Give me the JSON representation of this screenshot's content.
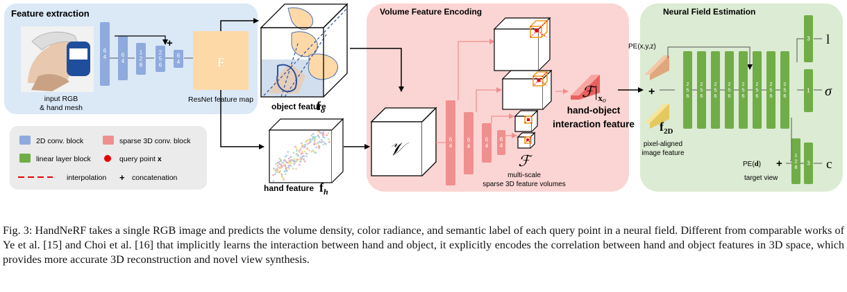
{
  "panels": {
    "feature_extraction": "Feature extraction",
    "volume_feature_encoding": "Volume Feature Encoding",
    "neural_field_estimation": "Neural Field Estimation"
  },
  "labels": {
    "input_rgb_line1": "input RGB",
    "input_rgb_line2": "& hand mesh",
    "resnet_feature_map": "ResNet feature map",
    "feature_map_symbol": "F",
    "object_feature": "object feature",
    "object_feature_symbol": "f",
    "object_feature_sub": "o",
    "hand_feature": "hand feature",
    "hand_feature_symbol": "f",
    "hand_feature_sub": "h",
    "volume_symbol": "𝒱",
    "multiscale_symbol": "ℱ",
    "multiscale_line1": "multi-scale",
    "multiscale_line2": "sparse 3D feature volumes",
    "interaction_symbol": "ℱ|",
    "interaction_sub": "x",
    "interaction_subsub": "o",
    "interaction_line1": "hand-object",
    "interaction_line2": "interaction feature",
    "pe_xyz": "PE(x,y,z)",
    "f2d_symbol": "f",
    "f2d_sub": "2D",
    "pixel_aligned_line1": "pixel-aligned",
    "pixel_aligned_line2": "image feature",
    "pe_d_prefix": "PE(",
    "pe_d_var": "d",
    "pe_d_suffix": ")",
    "target_view": "target view",
    "out_l": "l",
    "out_sigma": "σ",
    "out_c": "c",
    "plus": "+"
  },
  "legend": {
    "conv2d": "2D conv. block",
    "sparse3d": "sparse 3D conv. block",
    "linear": "linear layer block",
    "query_prefix": "query point ",
    "query_var": "x",
    "interpolation": "interpolation",
    "concat": "concatenation"
  },
  "blocks": {
    "conv2d": [
      "6\n4",
      "6\n4",
      "1\n2\n8",
      "2\n5\n6",
      "6\n4"
    ],
    "sparse3d": [
      "6\n4",
      "6\n4",
      "6\n4",
      "6\n4"
    ],
    "linear_main": [
      "2\n5\n6",
      "2\n5\n6",
      "2\n5\n6",
      "2\n5\n6",
      "2\n5\n6",
      "2\n5\n6",
      "2\n5\n6",
      "2\n5\n6"
    ],
    "linear_l": "3",
    "linear_sigma": "1",
    "linear_c1": "1\n2\n8",
    "linear_c2": "3"
  },
  "colors": {
    "blue_panel": "#dbe8f6",
    "pink_panel": "#fbd5d3",
    "green_panel": "#dcebd3",
    "conv2d_block": "#8faadc",
    "sparse3d_block": "#f08f8f",
    "linear_block": "#70ad47",
    "resnet_map": "#fdd9a8",
    "query_point": "#e60000",
    "pe_block": "#f3c7a8",
    "f2d_block": "#f7e49a"
  },
  "caption": "Fig. 3: HandNeRF takes a single RGB image and predicts the volume density, color radiance, and semantic label of each query point in a neural field. Different from comparable works of Ye et al. [15] and Choi et al. [16] that implicitly learns the interaction between hand and object, it explicitly encodes the correlation between hand and object features in 3D space, which provides more accurate 3D reconstruction and novel view synthesis."
}
